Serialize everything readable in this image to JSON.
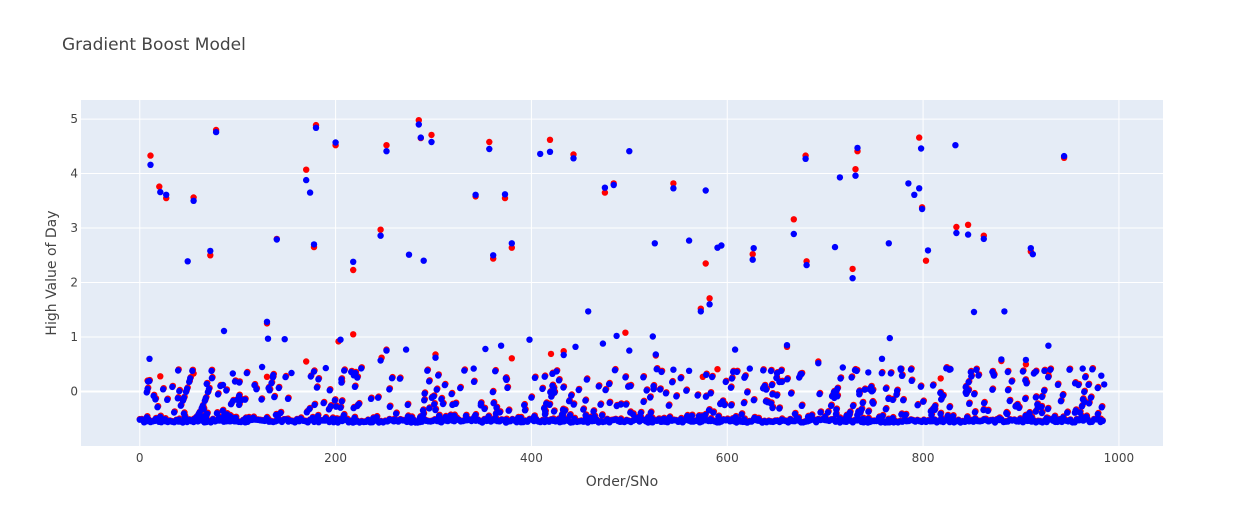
{
  "chart_data": {
    "type": "scatter",
    "title": "Gradient Boost Model",
    "xlabel": "Order/SNo",
    "ylabel": "High Value of Day",
    "xlim": [
      -60,
      1045
    ],
    "ylim": [
      -1.0,
      5.35
    ],
    "xticks": [
      0,
      200,
      400,
      600,
      800,
      1000
    ],
    "yticks": [
      0,
      1,
      2,
      3,
      4,
      5
    ],
    "grid": true,
    "legend": "none",
    "colors": {
      "plot_bg": "#e5ecf6",
      "grid": "#ffffff",
      "series_a": "#ff0000",
      "series_b": "#0000ff"
    },
    "series": [
      {
        "color": "#ff0000",
        "points": [
          [
            11,
            4.33
          ],
          [
            20,
            3.76
          ],
          [
            27,
            3.55
          ],
          [
            55,
            3.56
          ],
          [
            72,
            2.5
          ],
          [
            78,
            4.8
          ],
          [
            130,
            1.25
          ],
          [
            140,
            2.8
          ],
          [
            170,
            4.07
          ],
          [
            178,
            2.65
          ],
          [
            180,
            4.89
          ],
          [
            200,
            4.52
          ],
          [
            218,
            2.23
          ],
          [
            246,
            2.97
          ],
          [
            252,
            4.52
          ],
          [
            285,
            4.98
          ],
          [
            287,
            4.65
          ],
          [
            298,
            4.71
          ],
          [
            343,
            3.58
          ],
          [
            357,
            4.58
          ],
          [
            361,
            2.44
          ],
          [
            373,
            3.55
          ],
          [
            380,
            2.64
          ],
          [
            419,
            4.62
          ],
          [
            443,
            4.35
          ],
          [
            475,
            3.65
          ],
          [
            484,
            3.82
          ],
          [
            545,
            3.82
          ],
          [
            573,
            1.52
          ],
          [
            578,
            2.35
          ],
          [
            582,
            1.71
          ],
          [
            626,
            2.52
          ],
          [
            668,
            3.16
          ],
          [
            680,
            4.33
          ],
          [
            681,
            2.39
          ],
          [
            728,
            2.25
          ],
          [
            731,
            4.08
          ],
          [
            733,
            4.41
          ],
          [
            796,
            4.66
          ],
          [
            799,
            3.38
          ],
          [
            803,
            2.4
          ],
          [
            834,
            3.02
          ],
          [
            846,
            3.06
          ],
          [
            862,
            2.86
          ],
          [
            910,
            2.57
          ],
          [
            944,
            4.29
          ],
          [
            21,
            0.28
          ],
          [
            8,
            0.2
          ],
          [
            55,
            0.33
          ],
          [
            130,
            0.27
          ],
          [
            170,
            0.55
          ],
          [
            203,
            0.92
          ],
          [
            218,
            1.05
          ],
          [
            247,
            0.62
          ],
          [
            252,
            0.77
          ],
          [
            302,
            0.68
          ],
          [
            380,
            0.61
          ],
          [
            420,
            0.69
          ],
          [
            433,
            0.74
          ],
          [
            496,
            1.08
          ],
          [
            527,
            0.66
          ],
          [
            575,
            0.27
          ],
          [
            590,
            0.41
          ],
          [
            661,
            0.82
          ],
          [
            693,
            0.55
          ],
          [
            818,
            0.24
          ],
          [
            880,
            0.56
          ],
          [
            905,
            0.5
          ],
          [
            928,
            0.35
          ]
        ]
      },
      {
        "color": "#0000ff",
        "points": [
          [
            11,
            4.16
          ],
          [
            21,
            3.66
          ],
          [
            27,
            3.61
          ],
          [
            55,
            3.5
          ],
          [
            49,
            2.39
          ],
          [
            72,
            2.58
          ],
          [
            78,
            4.76
          ],
          [
            86,
            1.11
          ],
          [
            130,
            1.28
          ],
          [
            131,
            0.97
          ],
          [
            140,
            2.79
          ],
          [
            148,
            0.96
          ],
          [
            170,
            3.88
          ],
          [
            174,
            3.65
          ],
          [
            178,
            2.7
          ],
          [
            180,
            4.84
          ],
          [
            200,
            4.57
          ],
          [
            218,
            2.38
          ],
          [
            246,
            2.86
          ],
          [
            252,
            4.41
          ],
          [
            275,
            2.51
          ],
          [
            285,
            4.9
          ],
          [
            287,
            4.66
          ],
          [
            290,
            2.4
          ],
          [
            298,
            4.58
          ],
          [
            343,
            3.61
          ],
          [
            357,
            4.45
          ],
          [
            361,
            2.5
          ],
          [
            373,
            3.62
          ],
          [
            380,
            2.72
          ],
          [
            409,
            4.36
          ],
          [
            419,
            4.4
          ],
          [
            443,
            4.28
          ],
          [
            458,
            1.47
          ],
          [
            475,
            3.74
          ],
          [
            484,
            3.79
          ],
          [
            500,
            4.41
          ],
          [
            526,
            2.72
          ],
          [
            545,
            3.73
          ],
          [
            561,
            2.77
          ],
          [
            573,
            1.47
          ],
          [
            578,
            3.69
          ],
          [
            582,
            1.6
          ],
          [
            590,
            2.64
          ],
          [
            594,
            2.68
          ],
          [
            626,
            2.42
          ],
          [
            627,
            2.63
          ],
          [
            668,
            2.89
          ],
          [
            680,
            4.27
          ],
          [
            681,
            2.32
          ],
          [
            710,
            2.65
          ],
          [
            715,
            3.93
          ],
          [
            728,
            2.08
          ],
          [
            731,
            3.96
          ],
          [
            733,
            4.47
          ],
          [
            765,
            2.72
          ],
          [
            785,
            3.82
          ],
          [
            791,
            3.61
          ],
          [
            796,
            3.73
          ],
          [
            798,
            4.46
          ],
          [
            799,
            3.35
          ],
          [
            805,
            2.59
          ],
          [
            833,
            4.52
          ],
          [
            834,
            2.91
          ],
          [
            846,
            2.88
          ],
          [
            852,
            1.46
          ],
          [
            862,
            2.8
          ],
          [
            883,
            1.47
          ],
          [
            910,
            2.63
          ],
          [
            912,
            2.52
          ],
          [
            944,
            4.32
          ],
          [
            10,
            0.6
          ],
          [
            85,
            0.12
          ],
          [
            95,
            0.33
          ],
          [
            125,
            0.45
          ],
          [
            155,
            0.34
          ],
          [
            190,
            0.43
          ],
          [
            205,
            0.95
          ],
          [
            246,
            0.57
          ],
          [
            252,
            0.75
          ],
          [
            272,
            0.77
          ],
          [
            302,
            0.62
          ],
          [
            341,
            0.42
          ],
          [
            353,
            0.78
          ],
          [
            369,
            0.84
          ],
          [
            398,
            0.95
          ],
          [
            433,
            0.67
          ],
          [
            445,
            0.82
          ],
          [
            473,
            0.88
          ],
          [
            487,
            1.02
          ],
          [
            500,
            0.75
          ],
          [
            524,
            1.01
          ],
          [
            527,
            0.68
          ],
          [
            545,
            0.4
          ],
          [
            561,
            0.38
          ],
          [
            608,
            0.77
          ],
          [
            623,
            0.42
          ],
          [
            661,
            0.85
          ],
          [
            693,
            0.52
          ],
          [
            718,
            0.44
          ],
          [
            744,
            0.35
          ],
          [
            758,
            0.6
          ],
          [
            766,
            0.98
          ],
          [
            777,
            0.42
          ],
          [
            828,
            0.41
          ],
          [
            880,
            0.59
          ],
          [
            905,
            0.58
          ],
          [
            928,
            0.84
          ],
          [
            963,
            0.42
          ],
          [
            982,
            0.29
          ],
          [
            985,
            0.13
          ]
        ]
      }
    ]
  }
}
